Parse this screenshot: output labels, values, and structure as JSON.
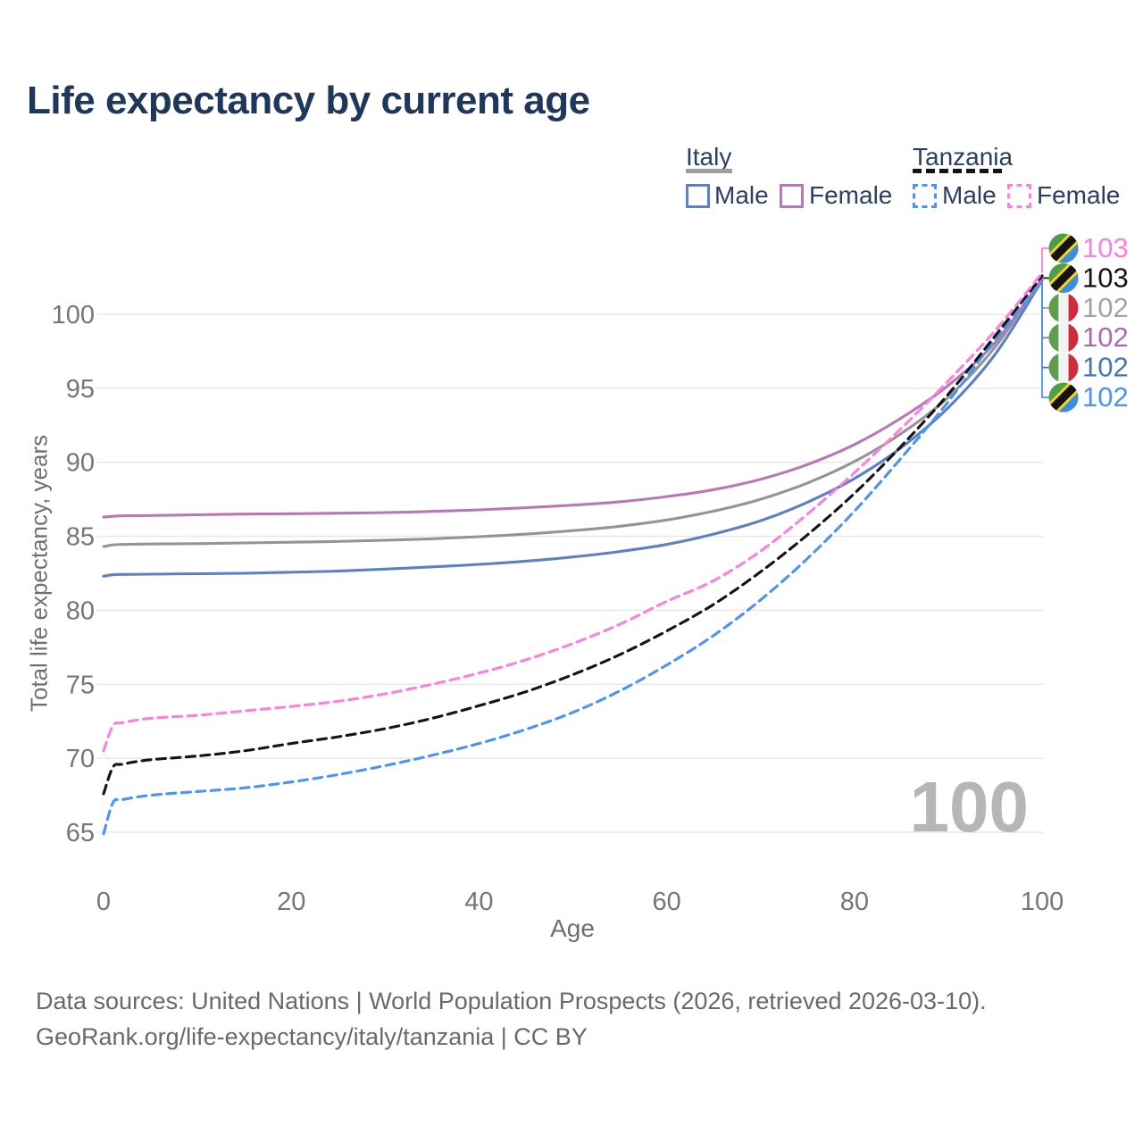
{
  "title": "Life expectancy by current age",
  "legend": {
    "groups": [
      {
        "label": "Italy",
        "line_style": "solid",
        "underline_color": "#9e9e9e",
        "items": [
          {
            "label": "Male",
            "color": "#5b80c4"
          },
          {
            "label": "Female",
            "color": "#b678b6"
          }
        ]
      },
      {
        "label": "Tanzania",
        "line_style": "dashed",
        "underline_color": "#141414",
        "items": [
          {
            "label": "Male",
            "color": "#4a94f5"
          },
          {
            "label": "Female",
            "color": "#fc7fe1"
          }
        ]
      }
    ]
  },
  "watermark": "100",
  "footer": {
    "line1": "Data sources: United Nations | World Population Prospects (2026, retrieved 2026-03-10).",
    "line2": "GeoRank.org/life-expectancy/italy/tanzania | CC BY"
  },
  "chart_data": {
    "type": "line",
    "title": "Life expectancy by current age",
    "xlabel": "Age",
    "ylabel": "Total life expectancy, years",
    "xlim": [
      0,
      100
    ],
    "ylim": [
      64,
      104
    ],
    "grid": "horizontal",
    "x_ticks": [
      0,
      20,
      40,
      60,
      80,
      100
    ],
    "y_ticks": [
      65,
      70,
      75,
      80,
      85,
      90,
      95,
      100
    ],
    "legend_position": "top-right",
    "series": [
      {
        "name": "Italy Male",
        "country": "Italy",
        "sex": "Male",
        "flag": "it",
        "color": "#5b80c4",
        "dashed": false,
        "points": [
          [
            0,
            82.3
          ],
          [
            1,
            82.4
          ],
          [
            2,
            82.42
          ],
          [
            5,
            82.44
          ],
          [
            10,
            82.47
          ],
          [
            15,
            82.5
          ],
          [
            20,
            82.57
          ],
          [
            25,
            82.65
          ],
          [
            30,
            82.78
          ],
          [
            35,
            82.93
          ],
          [
            40,
            83.1
          ],
          [
            45,
            83.32
          ],
          [
            50,
            83.6
          ],
          [
            55,
            83.97
          ],
          [
            60,
            84.45
          ],
          [
            65,
            85.15
          ],
          [
            70,
            86.05
          ],
          [
            75,
            87.3
          ],
          [
            80,
            88.9
          ],
          [
            85,
            91.0
          ],
          [
            90,
            93.7
          ],
          [
            95,
            97.3
          ],
          [
            100,
            102.3
          ]
        ]
      },
      {
        "name": "Italy Total",
        "country": "Italy",
        "sex": "Both",
        "flag": "it",
        "color": "#949494",
        "dashed": false,
        "points": [
          [
            0,
            84.3
          ],
          [
            1,
            84.42
          ],
          [
            2,
            84.45
          ],
          [
            5,
            84.48
          ],
          [
            10,
            84.5
          ],
          [
            15,
            84.55
          ],
          [
            20,
            84.6
          ],
          [
            25,
            84.65
          ],
          [
            30,
            84.73
          ],
          [
            35,
            84.83
          ],
          [
            40,
            84.97
          ],
          [
            45,
            85.15
          ],
          [
            50,
            85.38
          ],
          [
            55,
            85.68
          ],
          [
            60,
            86.1
          ],
          [
            65,
            86.7
          ],
          [
            70,
            87.5
          ],
          [
            75,
            88.6
          ],
          [
            80,
            90.05
          ],
          [
            85,
            91.95
          ],
          [
            90,
            94.4
          ],
          [
            95,
            97.8
          ],
          [
            100,
            102.45
          ]
        ]
      },
      {
        "name": "Italy Female",
        "country": "Italy",
        "sex": "Female",
        "flag": "it",
        "color": "#b678b6",
        "dashed": false,
        "points": [
          [
            0,
            86.3
          ],
          [
            1,
            86.35
          ],
          [
            2,
            86.38
          ],
          [
            5,
            86.4
          ],
          [
            10,
            86.45
          ],
          [
            15,
            86.5
          ],
          [
            20,
            86.52
          ],
          [
            25,
            86.56
          ],
          [
            30,
            86.6
          ],
          [
            35,
            86.68
          ],
          [
            40,
            86.78
          ],
          [
            45,
            86.93
          ],
          [
            50,
            87.1
          ],
          [
            55,
            87.33
          ],
          [
            60,
            87.68
          ],
          [
            65,
            88.15
          ],
          [
            70,
            88.85
          ],
          [
            75,
            89.85
          ],
          [
            80,
            91.2
          ],
          [
            85,
            93.0
          ],
          [
            90,
            95.2
          ],
          [
            95,
            98.1
          ],
          [
            100,
            102.4
          ]
        ]
      },
      {
        "name": "Tanzania Male",
        "country": "Tanzania",
        "sex": "Male",
        "flag": "tz",
        "color": "#4a94f5",
        "dashed": true,
        "points": [
          [
            0,
            64.9
          ],
          [
            1,
            67.0
          ],
          [
            2,
            67.2
          ],
          [
            5,
            67.5
          ],
          [
            10,
            67.75
          ],
          [
            15,
            68.0
          ],
          [
            20,
            68.4
          ],
          [
            25,
            68.9
          ],
          [
            30,
            69.5
          ],
          [
            35,
            70.2
          ],
          [
            40,
            71.0
          ],
          [
            45,
            71.95
          ],
          [
            50,
            73.1
          ],
          [
            55,
            74.55
          ],
          [
            60,
            76.3
          ],
          [
            65,
            78.3
          ],
          [
            70,
            80.7
          ],
          [
            75,
            83.5
          ],
          [
            80,
            86.7
          ],
          [
            85,
            90.3
          ],
          [
            90,
            94.1
          ],
          [
            95,
            98.3
          ],
          [
            100,
            102.15
          ]
        ]
      },
      {
        "name": "Tanzania Total",
        "country": "Tanzania",
        "sex": "Both",
        "flag": "tz",
        "color": "#141414",
        "dashed": true,
        "points": [
          [
            0,
            67.6
          ],
          [
            1,
            69.4
          ],
          [
            2,
            69.6
          ],
          [
            5,
            69.9
          ],
          [
            10,
            70.15
          ],
          [
            15,
            70.5
          ],
          [
            20,
            71.0
          ],
          [
            25,
            71.45
          ],
          [
            30,
            72.0
          ],
          [
            35,
            72.7
          ],
          [
            40,
            73.55
          ],
          [
            45,
            74.5
          ],
          [
            50,
            75.65
          ],
          [
            55,
            77.0
          ],
          [
            60,
            78.6
          ],
          [
            65,
            80.4
          ],
          [
            70,
            82.6
          ],
          [
            75,
            85.1
          ],
          [
            80,
            87.9
          ],
          [
            85,
            91.1
          ],
          [
            90,
            94.6
          ],
          [
            95,
            98.55
          ],
          [
            100,
            102.6
          ]
        ]
      },
      {
        "name": "Tanzania Female",
        "country": "Tanzania",
        "sex": "Female",
        "flag": "tz",
        "color": "#fc7fe1",
        "dashed": true,
        "points": [
          [
            0,
            70.5
          ],
          [
            1,
            72.2
          ],
          [
            2,
            72.4
          ],
          [
            5,
            72.7
          ],
          [
            10,
            72.9
          ],
          [
            15,
            73.2
          ],
          [
            20,
            73.5
          ],
          [
            25,
            73.85
          ],
          [
            30,
            74.35
          ],
          [
            35,
            75.0
          ],
          [
            40,
            75.75
          ],
          [
            45,
            76.65
          ],
          [
            50,
            77.75
          ],
          [
            55,
            79.05
          ],
          [
            60,
            80.6
          ],
          [
            65,
            82.0
          ],
          [
            70,
            84.0
          ],
          [
            75,
            86.5
          ],
          [
            80,
            89.3
          ],
          [
            85,
            92.3
          ],
          [
            90,
            95.5
          ],
          [
            95,
            98.9
          ],
          [
            100,
            102.8
          ]
        ]
      }
    ],
    "end_labels": [
      {
        "text": "103",
        "series": "Tanzania Female",
        "flag": "tz",
        "color": "#fc7fe1"
      },
      {
        "text": "103",
        "series": "Tanzania Total",
        "flag": "tz",
        "color": "#141414"
      },
      {
        "text": "102",
        "series": "Italy Total",
        "flag": "it",
        "color": "#a3a3a3"
      },
      {
        "text": "102",
        "series": "Italy Female",
        "flag": "it",
        "color": "#ab6cad"
      },
      {
        "text": "102",
        "series": "Italy Male",
        "flag": "it",
        "color": "#4a74b8"
      },
      {
        "text": "102",
        "series": "Tanzania Male",
        "flag": "tz",
        "color": "#4a94f5"
      }
    ]
  }
}
